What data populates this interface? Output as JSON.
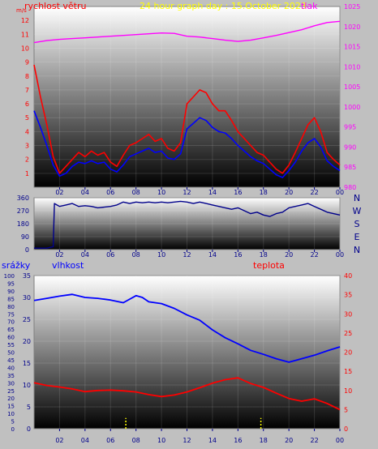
{
  "colors": {
    "frame": "#c0c0c0",
    "wind_label": "#ff0000",
    "wind_avg": "#0000ff",
    "title": "#ffff00",
    "pressure": "#ff00ff",
    "direction": "#00008b",
    "humidity_label": "#0000ff",
    "temperature": "#ff0000",
    "rain": "#ffff00",
    "axis_text": "#00008b",
    "gradient_top": "#ffffff",
    "gradient_bottom": "#000000"
  },
  "top_panel": {
    "title": "24 hour graph day : 15.October 2023",
    "left_label": "rychlost větru",
    "right_label": "tlak",
    "left_axis_label": "m/s"
  },
  "mid_panel": {
    "compass": [
      "N",
      "W",
      "S",
      "E",
      "N"
    ]
  },
  "bottom_panel": {
    "rain_label": "srážky",
    "humidity_label": "vlhkost",
    "temp_label": "teplota"
  },
  "chart_data": [
    {
      "type": "line",
      "title": "24 hour graph day : 15.October 2023",
      "y_label_left": "rychlost větru",
      "y_label_right": "tlak",
      "x_ticks": [
        "02",
        "04",
        "06",
        "08",
        "10",
        "12",
        "14",
        "16",
        "18",
        "20",
        "22",
        "00"
      ],
      "y_left_ticks": [
        1,
        2,
        3,
        4,
        5,
        6,
        7,
        8,
        9,
        10,
        11,
        12
      ],
      "ylim_left": [
        0,
        13
      ],
      "y_right_ticks": [
        980,
        985,
        990,
        995,
        1000,
        1005,
        1010,
        1015,
        1020,
        1025
      ],
      "ylim_right": [
        980,
        1025
      ],
      "x_range_hours": [
        0,
        24
      ],
      "series": [
        {
          "name": "rychlost větru",
          "axis": "left",
          "color": "#ff0000",
          "points": [
            [
              0,
              8.8
            ],
            [
              0.5,
              6.5
            ],
            [
              1,
              4.5
            ],
            [
              1.5,
              2.2
            ],
            [
              2,
              1.0
            ],
            [
              2.5,
              1.5
            ],
            [
              3,
              2.0
            ],
            [
              3.5,
              2.5
            ],
            [
              4,
              2.2
            ],
            [
              4.5,
              2.6
            ],
            [
              5,
              2.3
            ],
            [
              5.5,
              2.5
            ],
            [
              6,
              1.8
            ],
            [
              6.5,
              1.5
            ],
            [
              7,
              2.3
            ],
            [
              7.5,
              3.0
            ],
            [
              8,
              3.2
            ],
            [
              8.5,
              3.5
            ],
            [
              9,
              3.8
            ],
            [
              9.5,
              3.3
            ],
            [
              10,
              3.5
            ],
            [
              10.5,
              2.8
            ],
            [
              11,
              2.6
            ],
            [
              11.5,
              3.2
            ],
            [
              12,
              6.0
            ],
            [
              12.5,
              6.5
            ],
            [
              13,
              7.0
            ],
            [
              13.5,
              6.8
            ],
            [
              14,
              6.0
            ],
            [
              14.5,
              5.5
            ],
            [
              15,
              5.5
            ],
            [
              15.5,
              4.8
            ],
            [
              16,
              4.0
            ],
            [
              16.5,
              3.5
            ],
            [
              17,
              3.0
            ],
            [
              17.5,
              2.5
            ],
            [
              18,
              2.3
            ],
            [
              18.5,
              1.8
            ],
            [
              19,
              1.3
            ],
            [
              19.5,
              1.0
            ],
            [
              20,
              1.6
            ],
            [
              20.5,
              2.5
            ],
            [
              21,
              3.5
            ],
            [
              21.5,
              4.5
            ],
            [
              22,
              5.0
            ],
            [
              22.5,
              4.0
            ],
            [
              23,
              2.5
            ],
            [
              23.5,
              2.0
            ],
            [
              24,
              1.6
            ]
          ]
        },
        {
          "name": "průměrná rychlost",
          "axis": "left",
          "color": "#0000ff",
          "points": [
            [
              0,
              5.5
            ],
            [
              0.5,
              4.3
            ],
            [
              1,
              3.0
            ],
            [
              1.5,
              1.6
            ],
            [
              2,
              0.8
            ],
            [
              2.5,
              1.0
            ],
            [
              3,
              1.5
            ],
            [
              3.5,
              1.8
            ],
            [
              4,
              1.7
            ],
            [
              4.5,
              1.9
            ],
            [
              5,
              1.7
            ],
            [
              5.5,
              1.8
            ],
            [
              6,
              1.3
            ],
            [
              6.5,
              1.1
            ],
            [
              7,
              1.6
            ],
            [
              7.5,
              2.2
            ],
            [
              8,
              2.4
            ],
            [
              8.5,
              2.6
            ],
            [
              9,
              2.8
            ],
            [
              9.5,
              2.5
            ],
            [
              10,
              2.6
            ],
            [
              10.5,
              2.1
            ],
            [
              11,
              2.0
            ],
            [
              11.5,
              2.4
            ],
            [
              12,
              4.2
            ],
            [
              12.5,
              4.6
            ],
            [
              13,
              5.0
            ],
            [
              13.5,
              4.8
            ],
            [
              14,
              4.3
            ],
            [
              14.5,
              4.0
            ],
            [
              15,
              3.9
            ],
            [
              15.5,
              3.5
            ],
            [
              16,
              3.0
            ],
            [
              16.5,
              2.6
            ],
            [
              17,
              2.2
            ],
            [
              17.5,
              1.9
            ],
            [
              18,
              1.7
            ],
            [
              18.5,
              1.3
            ],
            [
              19,
              0.9
            ],
            [
              19.5,
              0.7
            ],
            [
              20,
              1.2
            ],
            [
              20.5,
              1.8
            ],
            [
              21,
              2.6
            ],
            [
              21.5,
              3.2
            ],
            [
              22,
              3.5
            ],
            [
              22.5,
              2.9
            ],
            [
              23,
              1.9
            ],
            [
              23.5,
              1.5
            ],
            [
              24,
              1.2
            ]
          ]
        },
        {
          "name": "tlak",
          "axis": "right",
          "color": "#ff00ff",
          "points": [
            [
              0,
              1016.0
            ],
            [
              1,
              1016.5
            ],
            [
              2,
              1016.8
            ],
            [
              3,
              1017.0
            ],
            [
              4,
              1017.2
            ],
            [
              5,
              1017.4
            ],
            [
              6,
              1017.6
            ],
            [
              7,
              1017.8
            ],
            [
              8,
              1018.0
            ],
            [
              9,
              1018.2
            ],
            [
              10,
              1018.4
            ],
            [
              11,
              1018.3
            ],
            [
              12,
              1017.6
            ],
            [
              13,
              1017.4
            ],
            [
              14,
              1017.0
            ],
            [
              15,
              1016.6
            ],
            [
              16,
              1016.3
            ],
            [
              17,
              1016.6
            ],
            [
              18,
              1017.2
            ],
            [
              19,
              1017.8
            ],
            [
              20,
              1018.5
            ],
            [
              21,
              1019.2
            ],
            [
              22,
              1020.2
            ],
            [
              23,
              1021.0
            ],
            [
              24,
              1021.3
            ]
          ]
        }
      ]
    },
    {
      "type": "line",
      "x_ticks": [
        "02",
        "04",
        "06",
        "08",
        "10",
        "12",
        "14",
        "16",
        "18",
        "20",
        "22",
        "00"
      ],
      "y_ticks": [
        0,
        90,
        180,
        270,
        360
      ],
      "ylim": [
        0,
        360
      ],
      "x_range_hours": [
        0,
        24
      ],
      "series": [
        {
          "name": "směr větru",
          "color": "#00008b",
          "points": [
            [
              0,
              10
            ],
            [
              1,
              10
            ],
            [
              1.5,
              20
            ],
            [
              1.6,
              320
            ],
            [
              2,
              300
            ],
            [
              2.5,
              310
            ],
            [
              3,
              320
            ],
            [
              3.5,
              300
            ],
            [
              4,
              305
            ],
            [
              4.5,
              300
            ],
            [
              5,
              290
            ],
            [
              5.5,
              295
            ],
            [
              6,
              300
            ],
            [
              6.5,
              310
            ],
            [
              7,
              330
            ],
            [
              7.5,
              320
            ],
            [
              8,
              330
            ],
            [
              8.5,
              325
            ],
            [
              9,
              330
            ],
            [
              9.5,
              325
            ],
            [
              10,
              330
            ],
            [
              10.5,
              325
            ],
            [
              11,
              330
            ],
            [
              11.5,
              335
            ],
            [
              12,
              330
            ],
            [
              12.5,
              320
            ],
            [
              13,
              330
            ],
            [
              13.5,
              320
            ],
            [
              14,
              310
            ],
            [
              14.5,
              300
            ],
            [
              15,
              290
            ],
            [
              15.5,
              280
            ],
            [
              16,
              290
            ],
            [
              16.5,
              270
            ],
            [
              17,
              250
            ],
            [
              17.5,
              260
            ],
            [
              18,
              240
            ],
            [
              18.5,
              230
            ],
            [
              19,
              250
            ],
            [
              19.5,
              260
            ],
            [
              20,
              290
            ],
            [
              20.5,
              300
            ],
            [
              21,
              310
            ],
            [
              21.5,
              320
            ],
            [
              22,
              300
            ],
            [
              22.5,
              280
            ],
            [
              23,
              260
            ],
            [
              23.5,
              250
            ],
            [
              24,
              240
            ]
          ]
        }
      ]
    },
    {
      "type": "line",
      "y_label_left": "srážky",
      "series_labels": [
        "vlhkost",
        "teplota"
      ],
      "x_ticks": [
        "02",
        "04",
        "06",
        "08",
        "10",
        "12",
        "14",
        "16",
        "18",
        "20",
        "22",
        "00"
      ],
      "y_rain_ticks": [
        0,
        5,
        10,
        15,
        20,
        25,
        30,
        35,
        40,
        45,
        50,
        55,
        60,
        65,
        70,
        75,
        80,
        85,
        90,
        95,
        100
      ],
      "ylim_rain": [
        0,
        100
      ],
      "y_humidity_ticks": [
        0,
        5,
        10,
        15,
        20,
        25,
        30,
        35
      ],
      "ylim_humidity": [
        0,
        35
      ],
      "y_temp_ticks": [
        0,
        5,
        10,
        15,
        20,
        25,
        30,
        35,
        40
      ],
      "ylim_temp": [
        0,
        40
      ],
      "x_range_hours": [
        0,
        24
      ],
      "series": [
        {
          "name": "vlhkost",
          "axis": "humidity",
          "color": "#0000ff",
          "points": [
            [
              0,
              29.3
            ],
            [
              1,
              29.8
            ],
            [
              2,
              30.3
            ],
            [
              3,
              30.7
            ],
            [
              4,
              30.0
            ],
            [
              5,
              29.8
            ],
            [
              6,
              29.4
            ],
            [
              7,
              28.8
            ],
            [
              8,
              30.4
            ],
            [
              8.5,
              30.0
            ],
            [
              9,
              29.0
            ],
            [
              10,
              28.6
            ],
            [
              11,
              27.5
            ],
            [
              12,
              26.0
            ],
            [
              13,
              24.8
            ],
            [
              14,
              22.6
            ],
            [
              15,
              20.8
            ],
            [
              16,
              19.4
            ],
            [
              17,
              17.9
            ],
            [
              18,
              17.0
            ],
            [
              19,
              16.0
            ],
            [
              20,
              15.2
            ],
            [
              21,
              16.0
            ],
            [
              22,
              16.8
            ],
            [
              23,
              17.8
            ],
            [
              24,
              18.7
            ]
          ]
        },
        {
          "name": "teplota",
          "axis": "temp",
          "color": "#ff0000",
          "points": [
            [
              0,
              12.0
            ],
            [
              1,
              11.3
            ],
            [
              2,
              10.9
            ],
            [
              3,
              10.4
            ],
            [
              4,
              9.7
            ],
            [
              5,
              10.0
            ],
            [
              6,
              10.1
            ],
            [
              7,
              9.9
            ],
            [
              8,
              9.6
            ],
            [
              9,
              8.9
            ],
            [
              10,
              8.4
            ],
            [
              11,
              8.8
            ],
            [
              12,
              9.6
            ],
            [
              13,
              10.7
            ],
            [
              14,
              11.9
            ],
            [
              15,
              12.8
            ],
            [
              16,
              13.3
            ],
            [
              17,
              11.8
            ],
            [
              18,
              10.8
            ],
            [
              19,
              9.3
            ],
            [
              20,
              7.9
            ],
            [
              21,
              7.2
            ],
            [
              22,
              7.8
            ],
            [
              23,
              6.6
            ],
            [
              24,
              5.0
            ]
          ]
        },
        {
          "name": "srážky",
          "axis": "rain",
          "color": "#ffff00",
          "points": [
            [
              7.2,
              7
            ],
            [
              17.8,
              7
            ]
          ]
        }
      ]
    }
  ]
}
